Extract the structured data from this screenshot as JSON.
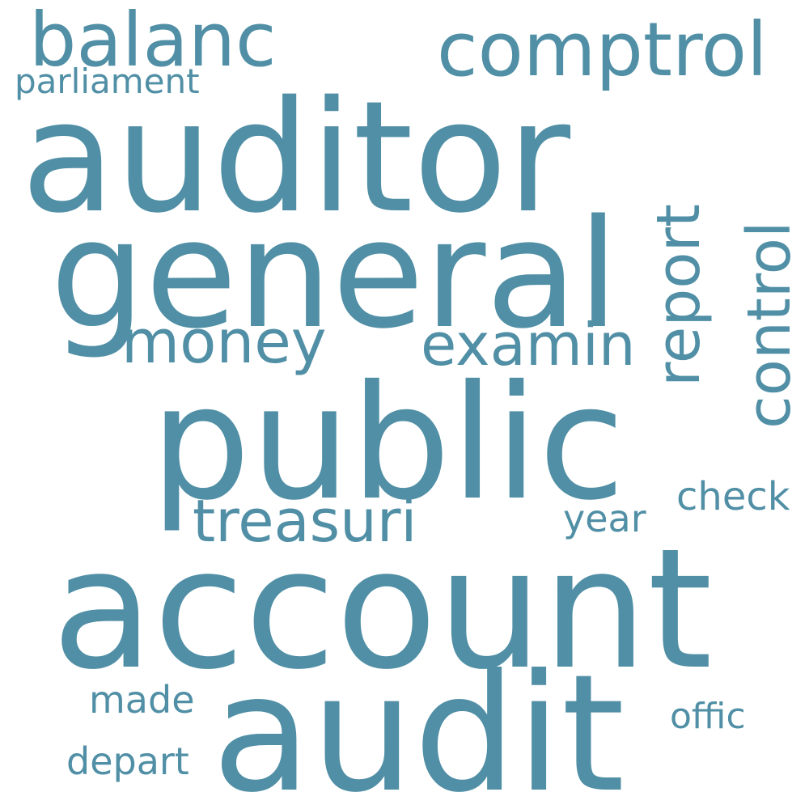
{
  "color": "#508fa5",
  "background": "#ffffff",
  "words": {
    "auditor": "auditor",
    "general": "general",
    "public": "public",
    "account": "account",
    "audit": "audit",
    "balanc": "balanc",
    "comptrol": "comptrol",
    "parliament": "parliament",
    "money": "money",
    "examin": "examin",
    "report": "report",
    "control": "control",
    "treasuri": "treasuri",
    "check": "check",
    "year": "year",
    "made": "made",
    "offic": "offic",
    "depart": "depart"
  }
}
